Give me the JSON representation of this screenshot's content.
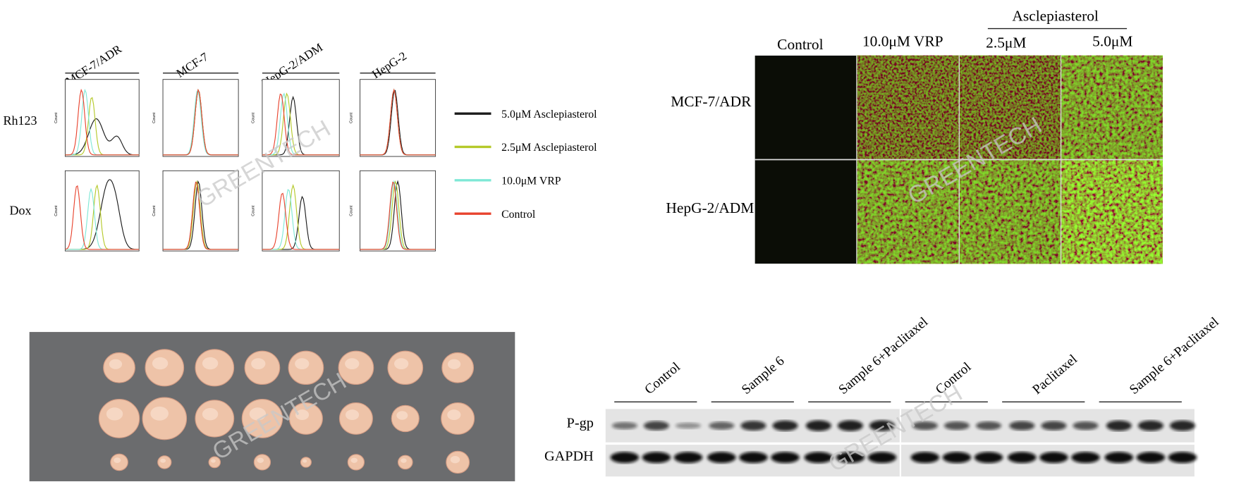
{
  "flow_cytometry": {
    "columns": [
      "MCF-7/ADR",
      "MCF-7",
      "HepG-2/ADM",
      "HepG-2"
    ],
    "rows": [
      "Rh123",
      "Dox"
    ],
    "y_label": "Count",
    "legend": [
      {
        "name": "5.0μM Asclepiasterol",
        "color": "#1a1a1a"
      },
      {
        "name": "2.5μM Asclepiasterol",
        "color": "#b5c92a"
      },
      {
        "name": "10.0μM VRP",
        "color": "#7fe8d6"
      },
      {
        "name": "Control",
        "color": "#e8432e"
      }
    ]
  },
  "fluorescence": {
    "columns": [
      "Control",
      "10.0μM VRP",
      "2.5μM",
      "5.0μM"
    ],
    "group_label": "Asclepiasterol",
    "rows": [
      "MCF-7/ADR",
      "HepG-2/ADM"
    ]
  },
  "western_blot": {
    "groups": [
      "Control",
      "Sample 6",
      "Sample 6+Paclitaxel",
      "Control",
      "Paclitaxel",
      "Sample 6+Paclitaxel"
    ],
    "rows": [
      "P-gp",
      "GAPDH"
    ]
  },
  "watermark": "GREENTECH"
}
